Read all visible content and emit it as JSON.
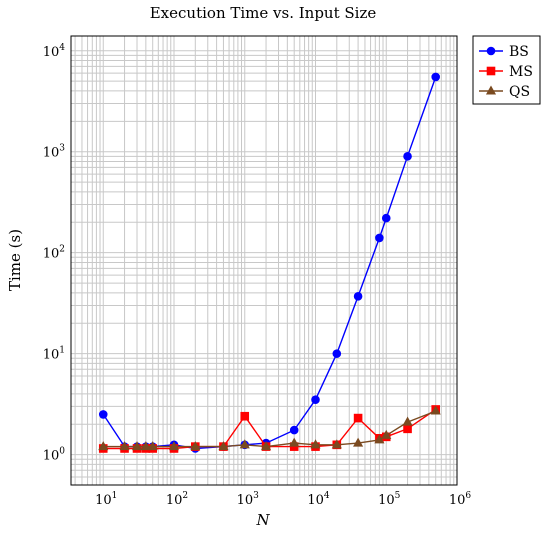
{
  "chart_data": {
    "type": "line",
    "title": "Execution Time vs. Input Size",
    "xlabel": "N",
    "ylabel": "Time (s)",
    "xscale": "log",
    "yscale": "log",
    "xlim": [
      3.5,
      1000000
    ],
    "ylim": [
      0.5,
      14000
    ],
    "grid": true,
    "legend_position": "outside-top-right",
    "x_ticks": [
      {
        "value": 10,
        "mantissa": "10",
        "exp": "1"
      },
      {
        "value": 100,
        "mantissa": "10",
        "exp": "2"
      },
      {
        "value": 1000,
        "mantissa": "10",
        "exp": "3"
      },
      {
        "value": 10000,
        "mantissa": "10",
        "exp": "4"
      },
      {
        "value": 100000,
        "mantissa": "10",
        "exp": "5"
      },
      {
        "value": 1000000,
        "mantissa": "10",
        "exp": "6"
      }
    ],
    "y_ticks": [
      {
        "value": 1,
        "mantissa": "10",
        "exp": "0"
      },
      {
        "value": 10,
        "mantissa": "10",
        "exp": "1"
      },
      {
        "value": 100,
        "mantissa": "10",
        "exp": "2"
      },
      {
        "value": 1000,
        "mantissa": "10",
        "exp": "3"
      },
      {
        "value": 10000,
        "mantissa": "10",
        "exp": "4"
      }
    ],
    "series": [
      {
        "name": "BS",
        "color": "#0000ff",
        "marker": "circle",
        "points": [
          [
            10,
            2.5
          ],
          [
            20,
            1.2
          ],
          [
            30,
            1.2
          ],
          [
            40,
            1.2
          ],
          [
            50,
            1.2
          ],
          [
            100,
            1.25
          ],
          [
            200,
            1.15
          ],
          [
            500,
            1.2
          ],
          [
            1000,
            1.25
          ],
          [
            2000,
            1.3
          ],
          [
            5000,
            1.75
          ],
          [
            10000,
            3.5
          ],
          [
            20000,
            10
          ],
          [
            40000,
            37
          ],
          [
            80000,
            140
          ],
          [
            100000,
            220
          ],
          [
            200000,
            900
          ],
          [
            500000,
            5500
          ]
        ]
      },
      {
        "name": "MS",
        "color": "#ff0000",
        "marker": "square",
        "points": [
          [
            10,
            1.15
          ],
          [
            20,
            1.15
          ],
          [
            30,
            1.15
          ],
          [
            40,
            1.15
          ],
          [
            50,
            1.15
          ],
          [
            100,
            1.15
          ],
          [
            200,
            1.2
          ],
          [
            500,
            1.2
          ],
          [
            1000,
            2.4
          ],
          [
            2000,
            1.2
          ],
          [
            5000,
            1.2
          ],
          [
            10000,
            1.2
          ],
          [
            20000,
            1.25
          ],
          [
            40000,
            2.3
          ],
          [
            80000,
            1.45
          ],
          [
            100000,
            1.5
          ],
          [
            200000,
            1.8
          ],
          [
            500000,
            2.8
          ]
        ]
      },
      {
        "name": "QS",
        "color": "#7a4a20",
        "marker": "triangle",
        "points": [
          [
            10,
            1.2
          ],
          [
            20,
            1.2
          ],
          [
            30,
            1.2
          ],
          [
            40,
            1.2
          ],
          [
            50,
            1.2
          ],
          [
            100,
            1.2
          ],
          [
            200,
            1.2
          ],
          [
            500,
            1.2
          ],
          [
            1000,
            1.25
          ],
          [
            2000,
            1.2
          ],
          [
            5000,
            1.3
          ],
          [
            10000,
            1.25
          ],
          [
            20000,
            1.25
          ],
          [
            40000,
            1.3
          ],
          [
            80000,
            1.4
          ],
          [
            100000,
            1.55
          ],
          [
            200000,
            2.1
          ],
          [
            500000,
            2.7
          ]
        ]
      }
    ]
  }
}
